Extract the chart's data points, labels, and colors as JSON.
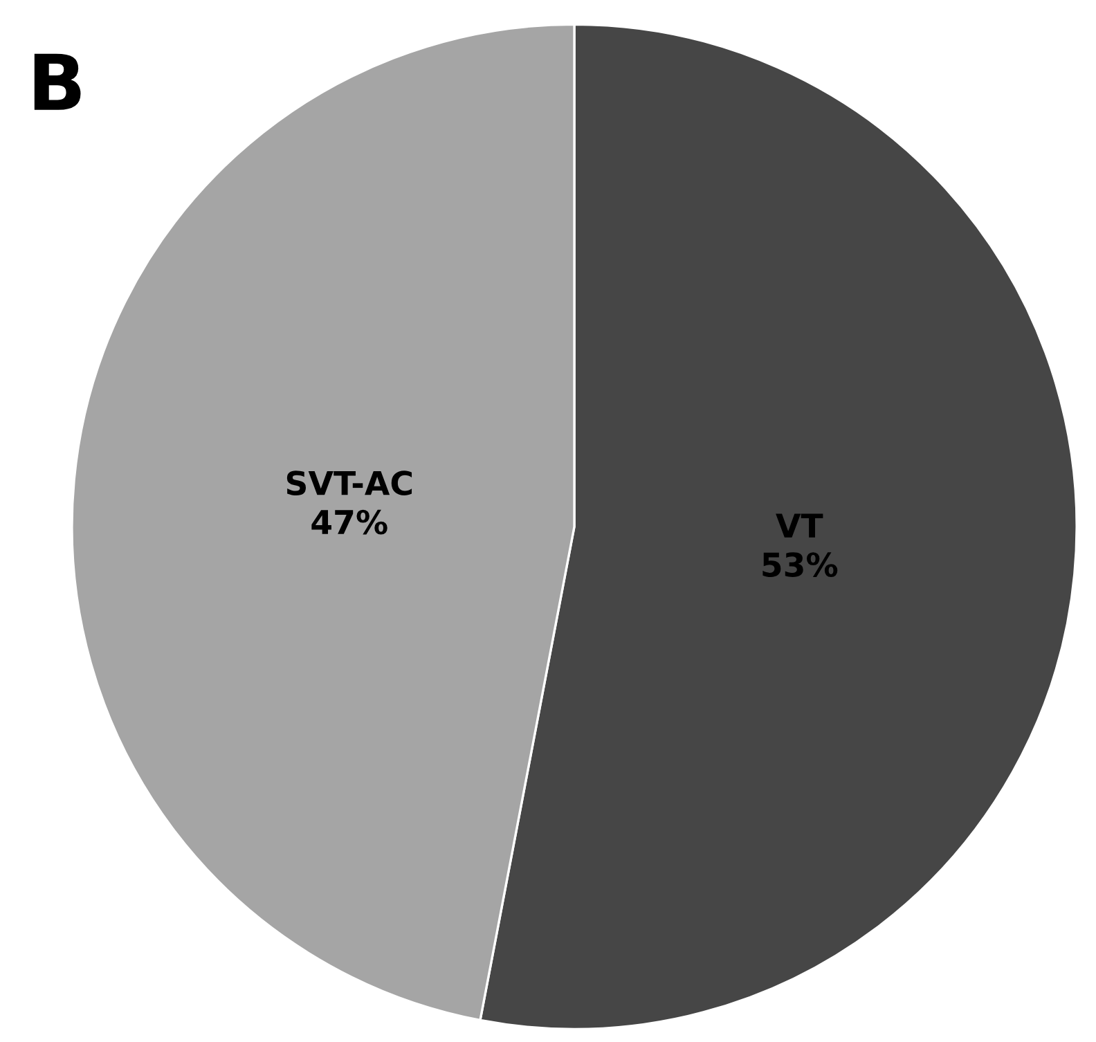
{
  "chart_data": {
    "type": "pie",
    "title": "B",
    "categories": [
      "VT",
      "SVT-AC"
    ],
    "values": [
      53,
      47
    ],
    "colors": [
      "#464646",
      "#a5a5a5"
    ],
    "value_labels": [
      "53%",
      "47%"
    ]
  }
}
